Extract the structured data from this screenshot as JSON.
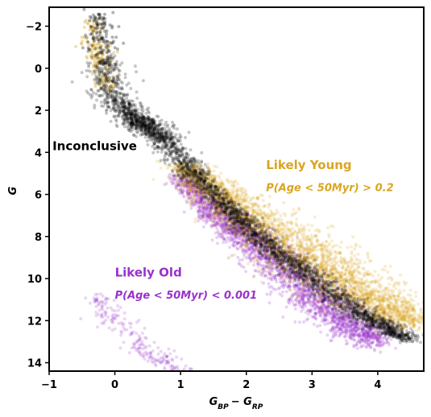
{
  "chart_data": {
    "type": "scatter",
    "title": "",
    "xlabel": "G_BP − G_RP",
    "ylabel": "G",
    "xlim": [
      -1,
      4.7
    ],
    "ylim": [
      14.4,
      -2.9
    ],
    "y_inverted": true,
    "grid": false,
    "x_ticks": [
      "−1",
      "0",
      "1",
      "2",
      "3",
      "4"
    ],
    "x_tick_values": [
      -1,
      0,
      1,
      2,
      3,
      4
    ],
    "y_ticks": [
      "−2",
      "0",
      "2",
      "4",
      "6",
      "8",
      "10",
      "12",
      "14"
    ],
    "y_tick_values": [
      -2,
      0,
      2,
      4,
      6,
      8,
      10,
      12,
      14
    ],
    "series": [
      {
        "color": "#9932CC",
        "sequence": {
          "x": [
            1.0,
            1.5,
            2.0,
            2.5,
            3.0,
            3.5,
            4.0
          ],
          "y": [
            5.2,
            6.8,
            8.0,
            9.3,
            10.8,
            12.0,
            13.0
          ],
          "spread": [
            0.25,
            0.35,
            0.45,
            0.5,
            0.55,
            0.5,
            0.4
          ]
        },
        "branch": {
          "x": [
            -0.3,
            0.0,
            0.5,
            1.0
          ],
          "y": [
            10.8,
            12.0,
            13.5,
            14.4
          ],
          "spread": [
            0.3,
            0.35,
            0.3,
            0.2
          ]
        }
      },
      {
        "color": "#DAA520",
        "sequence": {
          "x": [
            1.0,
            1.5,
            2.0,
            2.5,
            3.0,
            3.5,
            4.0,
            4.5
          ],
          "y": [
            4.6,
            5.8,
            7.0,
            8.2,
            9.2,
            10.2,
            11.2,
            12.2
          ],
          "spread": [
            0.3,
            0.45,
            0.6,
            0.75,
            0.8,
            0.75,
            0.6,
            0.4
          ]
        },
        "top": {
          "x": [
            -0.35,
            -0.3,
            -0.2,
            -0.15
          ],
          "y": [
            -2.2,
            -1.0,
            0.0,
            1.0
          ],
          "spread": [
            0.2,
            0.25,
            0.25,
            0.2
          ]
        }
      },
      {
        "color": "#000000",
        "sequence": {
          "x": [
            -0.15,
            0.0,
            0.3,
            0.5,
            0.8,
            1.2,
            1.6,
            2.0,
            2.5,
            3.0,
            3.5,
            4.0,
            4.5
          ],
          "y": [
            -0.5,
            1.5,
            2.4,
            2.8,
            3.5,
            5.0,
            6.3,
            7.5,
            8.8,
            10.0,
            11.2,
            12.1,
            12.9
          ],
          "spread": [
            0.3,
            0.35,
            0.3,
            0.28,
            0.3,
            0.25,
            0.25,
            0.28,
            0.3,
            0.3,
            0.3,
            0.25,
            0.2
          ]
        },
        "top": {
          "x": [
            -0.25,
            -0.2,
            -0.15
          ],
          "y": [
            -2.6,
            -1.5,
            -0.5
          ],
          "spread": [
            0.2,
            0.25,
            0.3
          ]
        }
      }
    ],
    "annotations": [
      {
        "text": "Inconclusive",
        "x": -0.95,
        "y": 3.9,
        "color": "#000000"
      },
      {
        "text": "Likely Young",
        "x": 2.3,
        "y": 4.8,
        "color": "#DAA520"
      },
      {
        "text": "P(Age < 50Myr) > 0.2",
        "x": 2.3,
        "y": 5.85,
        "color": "#DAA520",
        "italic": true
      },
      {
        "text": "Likely Old",
        "x": 0.0,
        "y": 9.9,
        "color": "#9932CC"
      },
      {
        "text": "P(Age < 50Myr) < 0.001",
        "x": 0.0,
        "y": 10.95,
        "color": "#9932CC",
        "italic": true
      }
    ]
  }
}
